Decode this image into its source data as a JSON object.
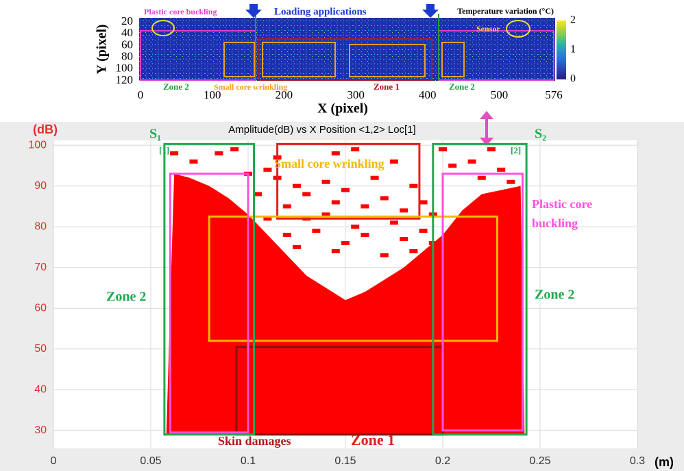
{
  "chart_data": [
    {
      "type": "heatmap",
      "xlabel": "X (pixel)",
      "ylabel": "Y (pixel)",
      "xlim": [
        0,
        576
      ],
      "xticks": [
        0,
        100,
        200,
        300,
        400,
        500,
        576
      ],
      "ylim": [
        15,
        120
      ],
      "yticks": [
        20,
        40,
        60,
        80,
        100,
        120
      ],
      "colorbar_label": "Temperature variation (°C)",
      "clim": [
        0,
        2
      ],
      "cticks": [
        0,
        1,
        2
      ],
      "annotations": [
        "Plastic core buckling",
        "Loading applications",
        "Sensor",
        "Zone 2",
        "Small core wrinkling",
        "Zone 1",
        "Zone 2"
      ]
    },
    {
      "type": "scatter",
      "title": "Amplitude(dB) vs X Position <1,2> Loc[1]",
      "ylabel": "(dB)",
      "xlabel": "(m)",
      "xlim": [
        0,
        0.3
      ],
      "xticks": [
        0,
        0.05,
        0.1,
        0.15,
        0.2,
        0.25,
        0.3
      ],
      "ylim": [
        25.6,
        101.2
      ],
      "yticks": [
        30,
        40,
        50,
        60,
        70,
        80,
        90,
        100
      ],
      "grid": true,
      "color": "#ff0000",
      "area": {
        "x": [
          0.058,
          0.062,
          0.07,
          0.08,
          0.09,
          0.1,
          0.11,
          0.12,
          0.13,
          0.14,
          0.15,
          0.16,
          0.17,
          0.18,
          0.19,
          0.2,
          0.21,
          0.22,
          0.23,
          0.24,
          0.242
        ],
        "y": [
          29,
          93,
          92,
          90,
          87,
          83,
          78,
          73,
          68,
          65,
          62,
          64,
          67,
          70,
          74,
          78,
          84,
          88,
          89,
          90,
          29
        ]
      },
      "points": {
        "x": [
          0.062,
          0.072,
          0.085,
          0.093,
          0.11,
          0.115,
          0.125,
          0.13,
          0.14,
          0.145,
          0.15,
          0.16,
          0.165,
          0.17,
          0.18,
          0.185,
          0.19,
          0.195,
          0.205,
          0.215,
          0.22,
          0.23,
          0.235,
          0.12,
          0.13,
          0.135,
          0.14,
          0.155,
          0.16,
          0.175,
          0.18,
          0.19,
          0.11,
          0.12,
          0.125,
          0.145,
          0.15,
          0.17,
          0.185,
          0.195,
          0.105,
          0.1,
          0.115,
          0.145,
          0.155,
          0.175,
          0.2,
          0.225
        ],
        "y": [
          98,
          96,
          98,
          99,
          94,
          92,
          90,
          88,
          91,
          86,
          89,
          85,
          92,
          87,
          84,
          90,
          86,
          83,
          95,
          96,
          92,
          94,
          91,
          85,
          82,
          79,
          83,
          80,
          78,
          81,
          77,
          79,
          82,
          78,
          75,
          74,
          76,
          73,
          74,
          76,
          88,
          93,
          97,
          98,
          99,
          96,
          99,
          99
        ]
      },
      "annotations": [
        "S₁",
        "[1]",
        "S₂",
        "[2]",
        "Small core wrinkling",
        "Plastic core",
        "buckling",
        "Zone 2",
        "Zone 2",
        "Skin damages",
        "Zone 1"
      ]
    }
  ]
}
